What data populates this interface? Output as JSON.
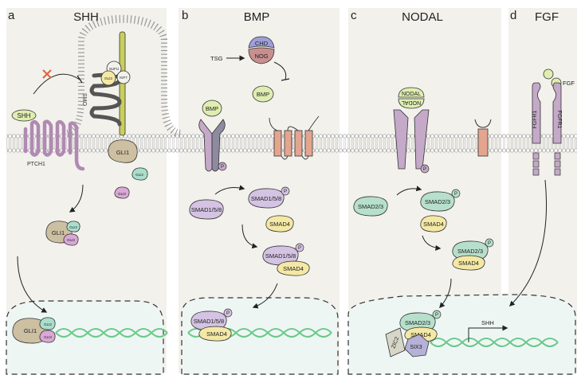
{
  "panels": [
    {
      "letter": "a",
      "title": "SHH"
    },
    {
      "letter": "b",
      "title": "BMP"
    },
    {
      "letter": "c",
      "title": "NODAL"
    },
    {
      "letter": "d",
      "title": "FGF"
    }
  ],
  "shh": {
    "ligand": "SHH",
    "receptor": "PTCH1",
    "smo": "SMO",
    "sufu": "SUFU",
    "gli3": "GLI3",
    "kif7": "KIF7",
    "gli1": "GLI1",
    "gli2": "GLI2",
    "complex": [
      "GLI1",
      "GLI2",
      "GLI3"
    ],
    "nuclear": [
      "GLI1",
      "GLI2",
      "GLI3"
    ]
  },
  "bmp": {
    "chd": "CHD",
    "nog": "NOG",
    "tsg": "TSG",
    "bmp_free": "BMP",
    "bmp_bound": "BMP",
    "p": "P",
    "smad158": "SMAD1/5/8",
    "smad158_p": "SMAD1/5/8",
    "smad4": "SMAD4",
    "complex_smad158": "SMAD1/5/8",
    "complex_smad4": "SMAD4",
    "nuc_smad158": "SMAD1/5/8",
    "nuc_smad4": "SMAD4"
  },
  "nodal": {
    "nodal_top": "NODAL",
    "nodal_bottom": "NODAL",
    "p": "P",
    "smad23": "SMAD2/3",
    "smad23_p": "SMAD2/3",
    "smad4": "SMAD4",
    "complex_smad23": "SMAD2/3",
    "complex_smad4": "SMAD4",
    "nuc_smad23": "SMAD2/3",
    "nuc_smad4": "SMAD4",
    "zic2": "ZIC2",
    "six3": "SIX3",
    "target_gene": "SHH"
  },
  "fgf": {
    "ligand": "FGF",
    "receptor_left": "FGFR1",
    "receptor_right": "FGFR1"
  },
  "colors": {
    "panel_bg": "#f2f1ec",
    "nucleus_bg": "#eef6f4",
    "membrane": "#b8b8b8",
    "ptch1": "#b08ab2",
    "receptor": "#c5a9c9",
    "gli1": "#cdbfa2",
    "gli2": "#a9dfcc",
    "gli3": "#d9a8d6",
    "smad_purple": "#d4c3e3",
    "smad_green": "#b7e0cc",
    "smad4": "#f4e8a5",
    "bmp": "#dfeeb0",
    "chd": "#9e9fd8",
    "nog": "#c98f8f",
    "salmon": "#e4a58f",
    "dna": "#6cc98a",
    "red_x": "#e0623c"
  }
}
